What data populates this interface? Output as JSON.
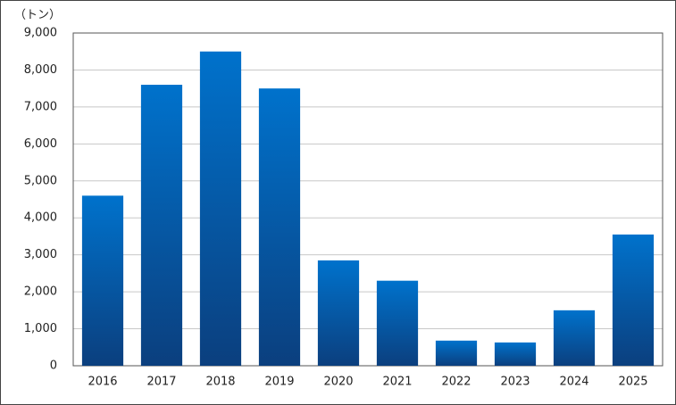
{
  "chart_data": {
    "type": "bar",
    "y_label": "（トン）",
    "categories": [
      "2016",
      "2017",
      "2018",
      "2019",
      "2020",
      "2021",
      "2022",
      "2023",
      "2024",
      "2025"
    ],
    "values": [
      4600,
      7600,
      8500,
      7500,
      2850,
      2300,
      680,
      630,
      1500,
      3550
    ],
    "color": "#0072cc",
    "ylim": [
      0,
      9000
    ],
    "yticks": [
      0,
      {
        "value": 1000,
        "label": "1,000"
      },
      {
        "value": 2000,
        "label": "2,000"
      },
      {
        "value": 3000,
        "label": "3,000"
      },
      {
        "value": 4000,
        "label": "4,000"
      },
      {
        "value": 5000,
        "label": "5,000"
      },
      {
        "value": 6000,
        "label": "6,000"
      },
      {
        "value": 7000,
        "label": "7,000"
      },
      {
        "value": 8000,
        "label": "8,000"
      },
      {
        "value": 9000,
        "label": "9,000"
      }
    ],
    "grid": true
  }
}
